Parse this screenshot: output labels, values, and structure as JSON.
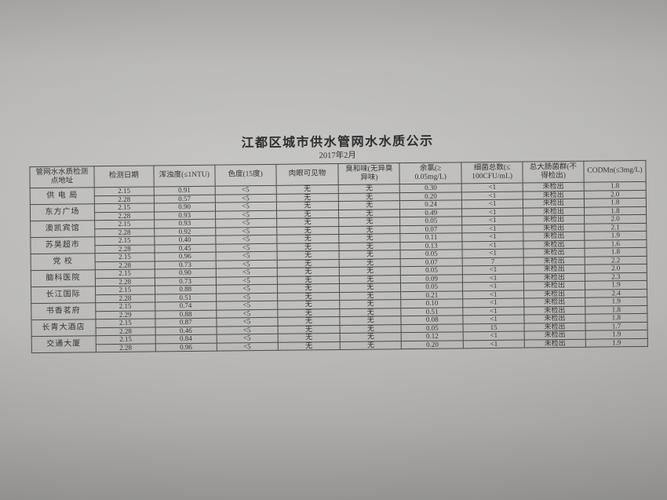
{
  "page": {
    "title": "江都区城市供水管网水水质公示",
    "subtitle": "2017年2月"
  },
  "table": {
    "headers": [
      "管网水水质检测\n点地址",
      "检测日期",
      "浑浊度(≤1NTU)",
      "色度(15度)",
      "肉眼可见物",
      "臭和味(无异臭\n异味)",
      "余氯(≥\n0.05mg/L)",
      "细菌总数(≤\n100CFU/mL)",
      "总大肠菌群(不\n得检出)",
      "CODMn(≤3mg/L)"
    ],
    "groups": [
      {
        "location": "供 电 局",
        "rows": [
          [
            "2.15",
            "0.91",
            "<5",
            "无",
            "无",
            "0.30",
            "<1",
            "未检出",
            "1.8"
          ],
          [
            "2.28",
            "0.57",
            "<5",
            "无",
            "无",
            "0.20",
            "<1",
            "未检出",
            "2.0"
          ]
        ]
      },
      {
        "location": "东方广场",
        "rows": [
          [
            "2.15",
            "0.90",
            "<5",
            "无",
            "无",
            "0.24",
            "<1",
            "未检出",
            "1.8"
          ],
          [
            "2.28",
            "0.93",
            "<5",
            "无",
            "无",
            "0.49",
            "<1",
            "未检出",
            "1.8"
          ]
        ]
      },
      {
        "location": "澳凯宾馆",
        "rows": [
          [
            "2.15",
            "0.93",
            "<5",
            "无",
            "无",
            "0.05",
            "<1",
            "未检出",
            "2.0"
          ],
          [
            "2.28",
            "0.92",
            "<5",
            "无",
            "无",
            "0.07",
            "<1",
            "未检出",
            "2.1"
          ]
        ]
      },
      {
        "location": "苏昊超市",
        "rows": [
          [
            "2.15",
            "0.40",
            "<5",
            "无",
            "无",
            "0.11",
            "<1",
            "未检出",
            "1.9"
          ],
          [
            "2.28",
            "0.45",
            "<5",
            "无",
            "无",
            "0.13",
            "<1",
            "未检出",
            "1.6"
          ]
        ]
      },
      {
        "location": "党  校",
        "rows": [
          [
            "2.15",
            "0.96",
            "<5",
            "无",
            "无",
            "0.05",
            "<1",
            "未检出",
            "1.8"
          ],
          [
            "2.28",
            "0.73",
            "<5",
            "无",
            "无",
            "0.07",
            "7",
            "未检出",
            "2.2"
          ]
        ]
      },
      {
        "location": "脑科医院",
        "rows": [
          [
            "2.15",
            "0.90",
            "<5",
            "无",
            "无",
            "0.05",
            "<1",
            "未检出",
            "2.0"
          ],
          [
            "2.28",
            "0.73",
            "<5",
            "无",
            "无",
            "0.09",
            "<1",
            "未检出",
            "2.3"
          ]
        ]
      },
      {
        "location": "长江国际",
        "rows": [
          [
            "2.15",
            "0.88",
            "<5",
            "无",
            "无",
            "0.05",
            "<1",
            "未检出",
            "1.9"
          ],
          [
            "2.28",
            "0.51",
            "<5",
            "无",
            "无",
            "0.21",
            "<1",
            "未检出",
            "2.4"
          ]
        ]
      },
      {
        "location": "书香茗府",
        "rows": [
          [
            "2.15",
            "0.74",
            "<5",
            "无",
            "无",
            "0.10",
            "<1",
            "未检出",
            "1.9"
          ],
          [
            "2.29",
            "0.88",
            "<5",
            "无",
            "无",
            "0.51",
            "<1",
            "未检出",
            "1.8"
          ]
        ]
      },
      {
        "location": "长青大酒店",
        "rows": [
          [
            "2.15",
            "0.87",
            "<5",
            "无",
            "无",
            "0.08",
            "<1",
            "未检出",
            "1.8"
          ],
          [
            "2.28",
            "0.46",
            "<5",
            "无",
            "无",
            "0.05",
            "15",
            "未检出",
            "1.7"
          ]
        ]
      },
      {
        "location": "交通大厦",
        "rows": [
          [
            "2.15",
            "0.84",
            "<5",
            "无",
            "无",
            "0.12",
            "<1",
            "未检出",
            "1.9"
          ],
          [
            "2.28",
            "0.96",
            "<5",
            "无",
            "无",
            "0.20",
            "<1",
            "未检出",
            "1.9"
          ]
        ]
      }
    ]
  }
}
